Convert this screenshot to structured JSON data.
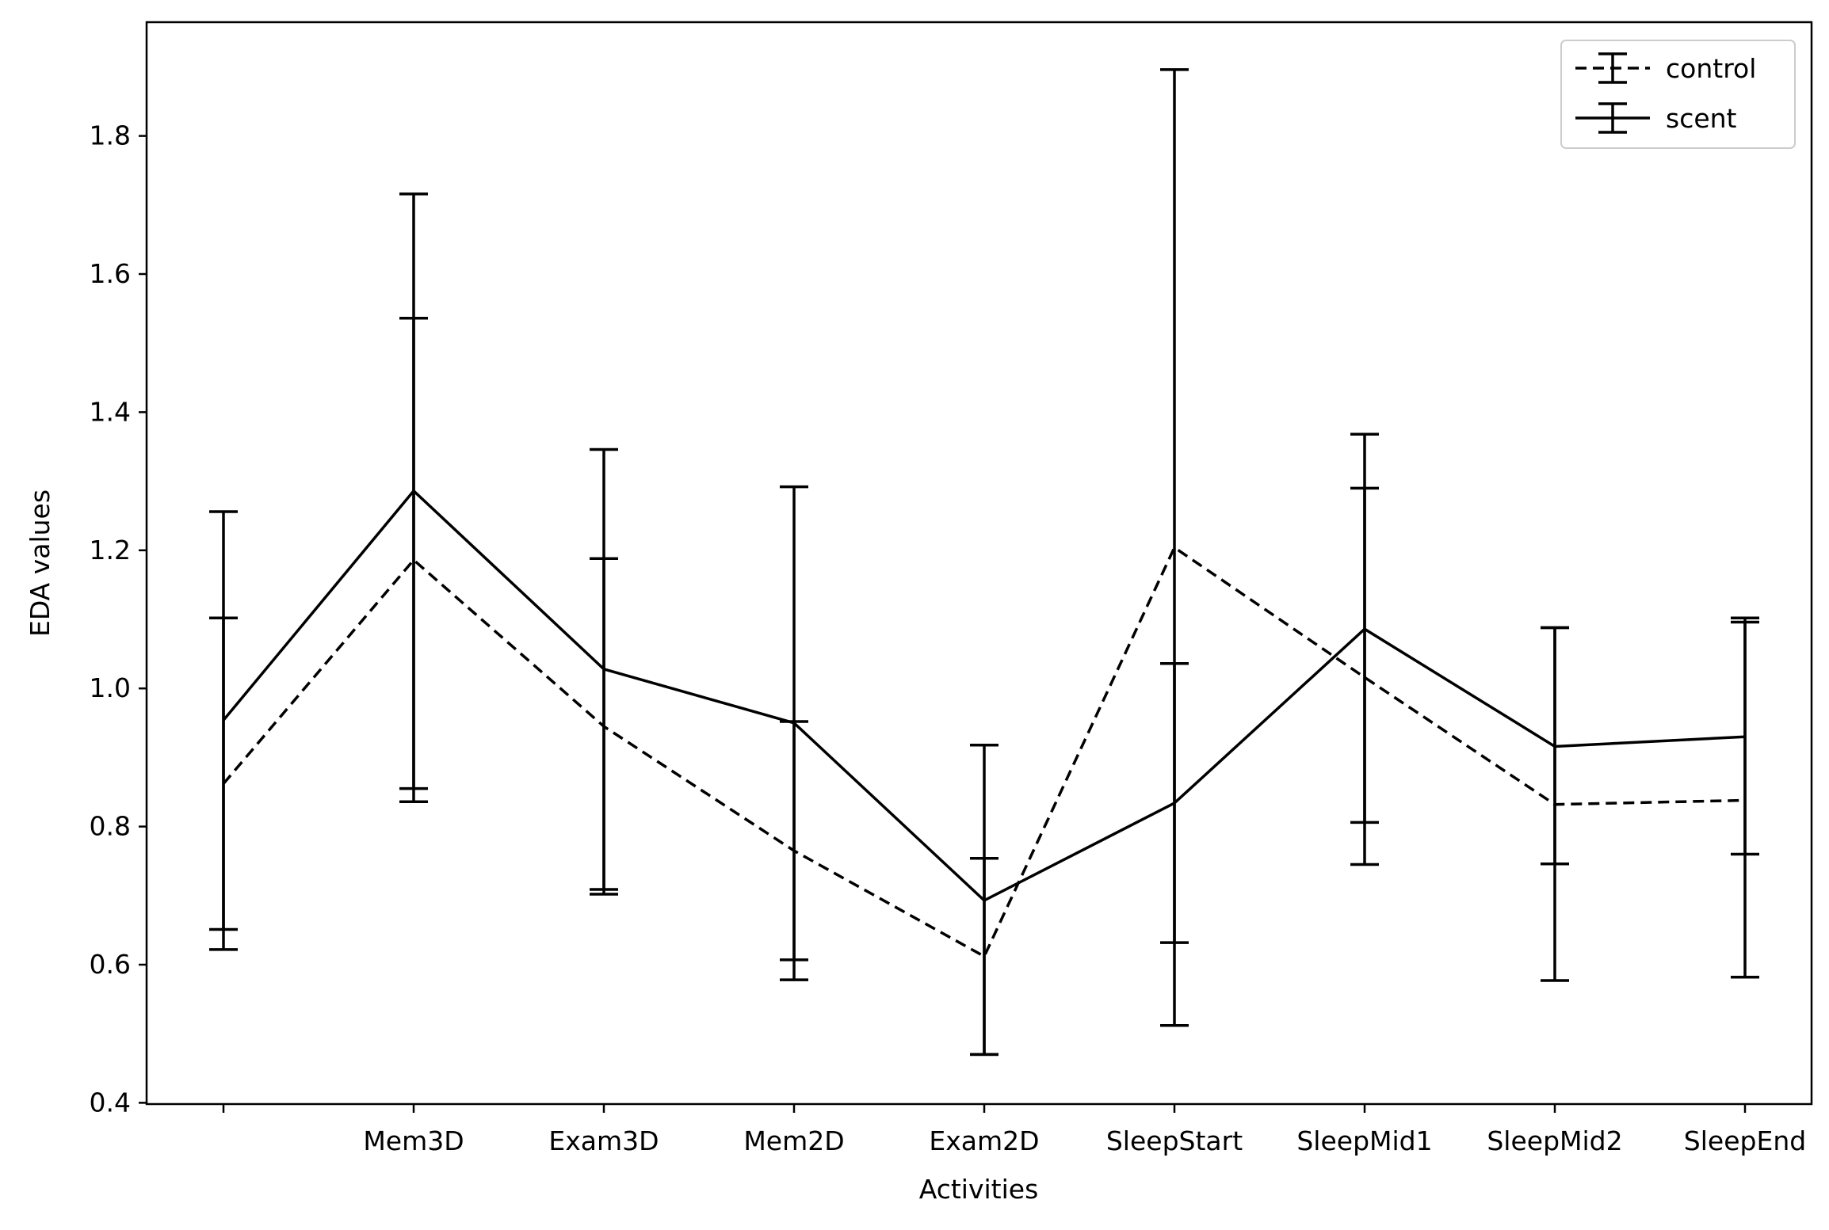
{
  "chart_data": {
    "type": "line",
    "xlabel": "Activities",
    "ylabel": "EDA values",
    "categories": [
      "",
      "Mem3D",
      "Exam3D",
      "Mem2D",
      "Exam2D",
      "SleepStart",
      "SleepMid1",
      "SleepMid2",
      "SleepEnd"
    ],
    "ylim": [
      0.4,
      1.97
    ],
    "yticks": [
      "0.4",
      "0.6",
      "0.8",
      "1.0",
      "1.2",
      "1.4",
      "1.6",
      "1.8"
    ],
    "grid": false,
    "legend_position": "top-right",
    "series": [
      {
        "name": "control",
        "line_style": "dashed",
        "color": "#000000",
        "values": [
          0.862,
          1.186,
          0.945,
          0.765,
          0.612,
          1.204,
          1.016,
          0.832,
          0.838
        ],
        "err_low": [
          0.622,
          0.836,
          0.702,
          0.578,
          0.47,
          0.512,
          0.745,
          0.577,
          0.582
        ],
        "err_high": [
          1.102,
          1.536,
          1.188,
          0.952,
          0.754,
          1.896,
          1.29,
          1.088,
          1.096
        ]
      },
      {
        "name": "scent",
        "line_style": "solid",
        "color": "#000000",
        "values": [
          0.954,
          1.286,
          1.028,
          0.95,
          0.693,
          0.834,
          1.086,
          0.916,
          0.93
        ],
        "err_low": [
          0.651,
          0.855,
          0.709,
          0.607,
          0.47,
          0.632,
          0.806,
          0.746,
          0.76
        ],
        "err_high": [
          1.256,
          1.716,
          1.346,
          1.292,
          0.918,
          1.036,
          1.368,
          1.088,
          1.102
        ]
      }
    ]
  }
}
